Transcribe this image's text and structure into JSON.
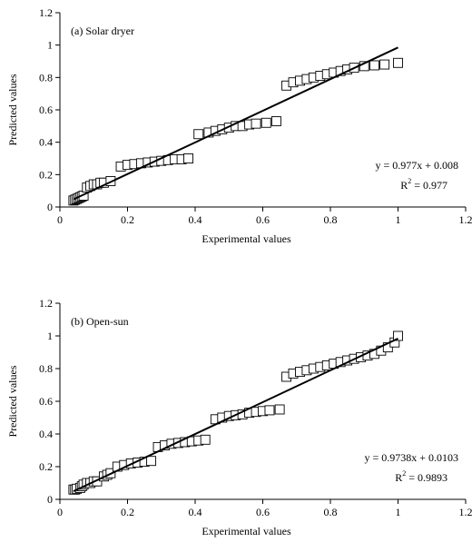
{
  "chart_data": [
    {
      "type": "scatter",
      "panel_label": "(a) Solar dryer",
      "xlabel": "Experimental values",
      "ylabel": "Predicted values",
      "xlim": [
        0,
        1.2
      ],
      "ylim": [
        0,
        1.2
      ],
      "x_ticks": [
        "0",
        "0.2",
        "0.4",
        "0.6",
        "0.8",
        "1",
        "1.2"
      ],
      "y_ticks": [
        "0",
        "0.2",
        "0.4",
        "0.6",
        "0.8",
        "1",
        "1.2"
      ],
      "grid": false,
      "equation": "y = 0.977x + 0.008",
      "r2_label": "R",
      "r2_sup": "2",
      "r2_value": " = 0.977",
      "fit": {
        "slope": 0.977,
        "intercept": 0.008,
        "x_range": [
          0.04,
          1.0
        ]
      },
      "points": [
        [
          0.04,
          0.04
        ],
        [
          0.045,
          0.045
        ],
        [
          0.05,
          0.05
        ],
        [
          0.055,
          0.055
        ],
        [
          0.06,
          0.06
        ],
        [
          0.065,
          0.065
        ],
        [
          0.07,
          0.07
        ],
        [
          0.08,
          0.12
        ],
        [
          0.09,
          0.13
        ],
        [
          0.1,
          0.14
        ],
        [
          0.11,
          0.14
        ],
        [
          0.12,
          0.15
        ],
        [
          0.13,
          0.15
        ],
        [
          0.15,
          0.16
        ],
        [
          0.18,
          0.25
        ],
        [
          0.2,
          0.26
        ],
        [
          0.22,
          0.265
        ],
        [
          0.24,
          0.27
        ],
        [
          0.26,
          0.275
        ],
        [
          0.28,
          0.28
        ],
        [
          0.3,
          0.285
        ],
        [
          0.32,
          0.29
        ],
        [
          0.34,
          0.295
        ],
        [
          0.36,
          0.295
        ],
        [
          0.38,
          0.3
        ],
        [
          0.41,
          0.45
        ],
        [
          0.44,
          0.46
        ],
        [
          0.46,
          0.47
        ],
        [
          0.48,
          0.48
        ],
        [
          0.5,
          0.49
        ],
        [
          0.52,
          0.5
        ],
        [
          0.54,
          0.5
        ],
        [
          0.56,
          0.51
        ],
        [
          0.58,
          0.515
        ],
        [
          0.61,
          0.52
        ],
        [
          0.64,
          0.53
        ],
        [
          0.67,
          0.75
        ],
        [
          0.69,
          0.77
        ],
        [
          0.71,
          0.78
        ],
        [
          0.73,
          0.79
        ],
        [
          0.75,
          0.8
        ],
        [
          0.77,
          0.81
        ],
        [
          0.79,
          0.82
        ],
        [
          0.81,
          0.83
        ],
        [
          0.83,
          0.84
        ],
        [
          0.85,
          0.85
        ],
        [
          0.87,
          0.86
        ],
        [
          0.9,
          0.87
        ],
        [
          0.93,
          0.875
        ],
        [
          0.96,
          0.88
        ],
        [
          1.0,
          0.89
        ]
      ]
    },
    {
      "type": "scatter",
      "panel_label": "(b) Open-sun",
      "xlabel": "Experimental values",
      "ylabel": "Predicted values",
      "xlim": [
        0,
        1.2
      ],
      "ylim": [
        0,
        1.2
      ],
      "x_ticks": [
        "0",
        "0.2",
        "0.4",
        "0.6",
        "0.8",
        "1",
        "1.2"
      ],
      "y_ticks": [
        "0",
        "0.2",
        "0.4",
        "0.6",
        "0.8",
        "1",
        "1.2"
      ],
      "grid": false,
      "equation": "y = 0.9738x + 0.0103",
      "r2_label": "R",
      "r2_sup": "2",
      "r2_value": " = 0.9893",
      "fit": {
        "slope": 0.9738,
        "intercept": 0.0103,
        "x_range": [
          0.04,
          1.0
        ]
      },
      "points": [
        [
          0.04,
          0.06
        ],
        [
          0.045,
          0.06
        ],
        [
          0.05,
          0.065
        ],
        [
          0.06,
          0.07
        ],
        [
          0.065,
          0.08
        ],
        [
          0.07,
          0.09
        ],
        [
          0.08,
          0.1
        ],
        [
          0.09,
          0.1
        ],
        [
          0.1,
          0.11
        ],
        [
          0.11,
          0.11
        ],
        [
          0.13,
          0.14
        ],
        [
          0.14,
          0.15
        ],
        [
          0.15,
          0.16
        ],
        [
          0.17,
          0.2
        ],
        [
          0.19,
          0.21
        ],
        [
          0.21,
          0.22
        ],
        [
          0.23,
          0.225
        ],
        [
          0.25,
          0.23
        ],
        [
          0.27,
          0.235
        ],
        [
          0.29,
          0.32
        ],
        [
          0.31,
          0.33
        ],
        [
          0.33,
          0.34
        ],
        [
          0.35,
          0.345
        ],
        [
          0.37,
          0.35
        ],
        [
          0.39,
          0.355
        ],
        [
          0.41,
          0.36
        ],
        [
          0.43,
          0.365
        ],
        [
          0.46,
          0.49
        ],
        [
          0.48,
          0.5
        ],
        [
          0.5,
          0.51
        ],
        [
          0.52,
          0.515
        ],
        [
          0.54,
          0.52
        ],
        [
          0.56,
          0.53
        ],
        [
          0.58,
          0.535
        ],
        [
          0.6,
          0.54
        ],
        [
          0.62,
          0.545
        ],
        [
          0.65,
          0.55
        ],
        [
          0.67,
          0.75
        ],
        [
          0.69,
          0.77
        ],
        [
          0.71,
          0.78
        ],
        [
          0.73,
          0.79
        ],
        [
          0.75,
          0.8
        ],
        [
          0.77,
          0.81
        ],
        [
          0.79,
          0.82
        ],
        [
          0.81,
          0.83
        ],
        [
          0.83,
          0.84
        ],
        [
          0.85,
          0.85
        ],
        [
          0.87,
          0.86
        ],
        [
          0.89,
          0.87
        ],
        [
          0.91,
          0.88
        ],
        [
          0.93,
          0.89
        ],
        [
          0.95,
          0.91
        ],
        [
          0.97,
          0.93
        ],
        [
          0.99,
          0.96
        ],
        [
          1.0,
          1.0
        ]
      ]
    }
  ]
}
